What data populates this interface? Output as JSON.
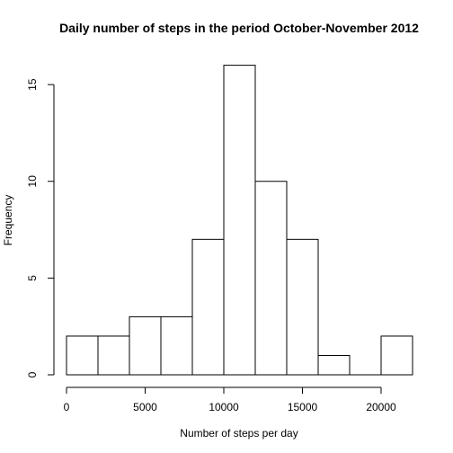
{
  "chart_data": {
    "type": "bar",
    "title": "Daily number of steps in the period October-November 2012",
    "xlabel": "Number of steps per day",
    "ylabel": "Frequency",
    "bins": [
      {
        "from": 0,
        "to": 2000,
        "value": 2
      },
      {
        "from": 2000,
        "to": 4000,
        "value": 2
      },
      {
        "from": 4000,
        "to": 6000,
        "value": 3
      },
      {
        "from": 6000,
        "to": 8000,
        "value": 3
      },
      {
        "from": 8000,
        "to": 10000,
        "value": 7
      },
      {
        "from": 10000,
        "to": 12000,
        "value": 16
      },
      {
        "from": 12000,
        "to": 14000,
        "value": 10
      },
      {
        "from": 14000,
        "to": 16000,
        "value": 7
      },
      {
        "from": 16000,
        "to": 18000,
        "value": 1
      },
      {
        "from": 18000,
        "to": 20000,
        "value": 0
      },
      {
        "from": 20000,
        "to": 22000,
        "value": 2
      }
    ],
    "xlim": [
      0,
      22000
    ],
    "ylim": [
      0,
      16
    ],
    "xticks": [
      0,
      5000,
      10000,
      15000,
      20000
    ],
    "yticks": [
      0,
      5,
      10,
      15
    ],
    "grid": false,
    "legend": "none"
  }
}
